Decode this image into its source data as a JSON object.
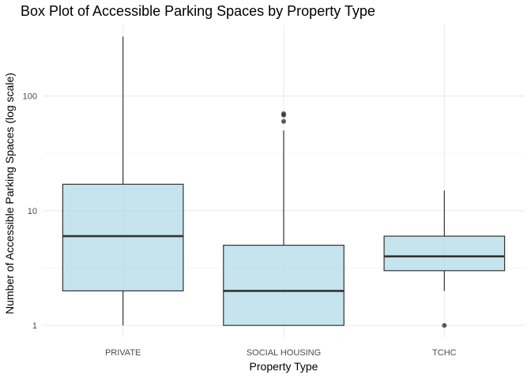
{
  "chart_data": {
    "type": "box",
    "title": "Box Plot of Accessible Parking Spaces by Property Type",
    "xlabel": "Property Type",
    "ylabel": "Number of Accessible Parking Spaces (log scale)",
    "y_scale": "log10",
    "ylim": [
      1,
      340
    ],
    "y_ticks": [
      1,
      10,
      100
    ],
    "y_tick_labels": [
      "1",
      "10",
      "100"
    ],
    "grid": true,
    "categories": [
      "PRIVATE",
      "SOCIAL HOUSING",
      "TCHC"
    ],
    "boxes": [
      {
        "category": "PRIVATE",
        "whisker_low": 1,
        "q1": 2,
        "median": 6,
        "q3": 17,
        "whisker_high": 330,
        "outliers": []
      },
      {
        "category": "SOCIAL HOUSING",
        "whisker_low": 1,
        "q1": 1,
        "median": 2,
        "q3": 5,
        "whisker_high": 50,
        "outliers": [
          60,
          68,
          70
        ]
      },
      {
        "category": "TCHC",
        "whisker_low": 2,
        "q1": 3,
        "median": 4,
        "q3": 6,
        "whisker_high": 15,
        "outliers": [
          1
        ]
      }
    ],
    "colors": {
      "box_fill": "#add8e6",
      "box_stroke": "#333333",
      "outlier": "#333333"
    }
  }
}
